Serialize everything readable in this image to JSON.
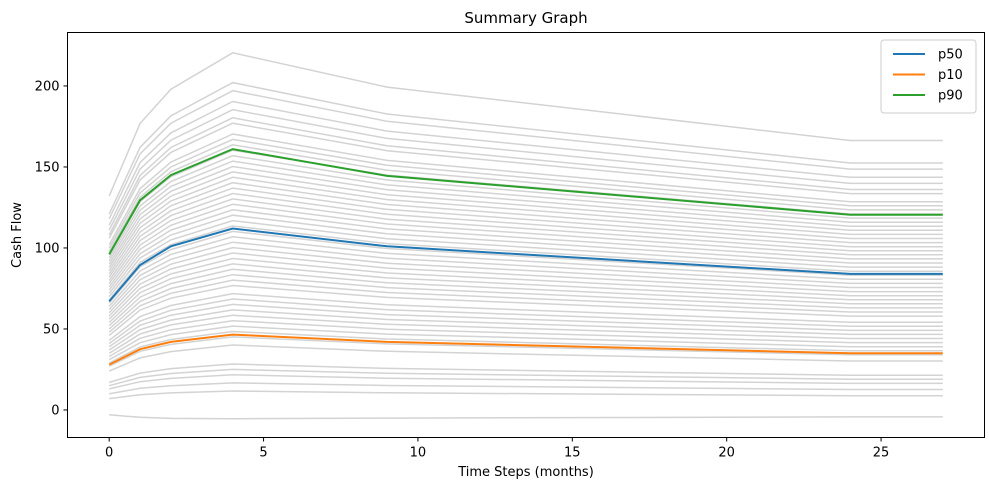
{
  "chart_data": {
    "type": "line",
    "title": "Summary Graph",
    "xlabel": "Time Steps (months)",
    "ylabel": "Cash Flow",
    "x": [
      0,
      1,
      2,
      4,
      9,
      24,
      27
    ],
    "xlim": [
      -1.35,
      28.35
    ],
    "ylim": [
      -17,
      233
    ],
    "xticks": [
      0,
      5,
      10,
      15,
      20,
      25
    ],
    "yticks": [
      0,
      50,
      100,
      150,
      200
    ],
    "grid": false,
    "legend_position": "top-right",
    "background_color": "#d3d3d3",
    "background_starts": [
      -3,
      7,
      10,
      13,
      15,
      17,
      24,
      27,
      29,
      31,
      33,
      35,
      37,
      39,
      41,
      43,
      46,
      48,
      50,
      52,
      54,
      56,
      58,
      60,
      62,
      64,
      66,
      68,
      70,
      72,
      74,
      76,
      78,
      80,
      82,
      84,
      86,
      88,
      90,
      92,
      94,
      96,
      98,
      100,
      102,
      106,
      108,
      111,
      114,
      118,
      121,
      132
    ],
    "series": [
      {
        "name": "p50",
        "color": "#1f77b4",
        "values": [
          67,
          89.5,
          101,
          112,
          101,
          84,
          84
        ]
      },
      {
        "name": "p10",
        "color": "#ff7f0e",
        "values": [
          28,
          37.5,
          42,
          46.5,
          42,
          35,
          35
        ]
      },
      {
        "name": "p90",
        "color": "#2ca02c",
        "values": [
          96,
          129.5,
          145,
          161,
          144.5,
          120.5,
          120.5
        ]
      }
    ]
  }
}
